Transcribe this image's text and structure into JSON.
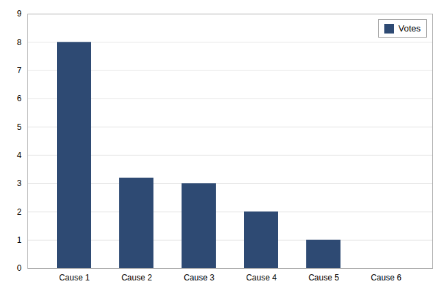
{
  "chart_data": {
    "type": "bar",
    "categories": [
      "Cause 1",
      "Cause 2",
      "Cause 3",
      "Cause 4",
      "Cause 5",
      "Cause 6"
    ],
    "series": [
      {
        "name": "Votes",
        "color": "#2E4A73",
        "values": [
          8,
          3.2,
          3.0,
          2.0,
          1.0,
          0.0
        ]
      }
    ],
    "ylim": [
      0,
      9
    ],
    "yticks": [
      0,
      1,
      2,
      3,
      4,
      5,
      6,
      7,
      8,
      9
    ],
    "grid": true,
    "legend": "upper right"
  }
}
